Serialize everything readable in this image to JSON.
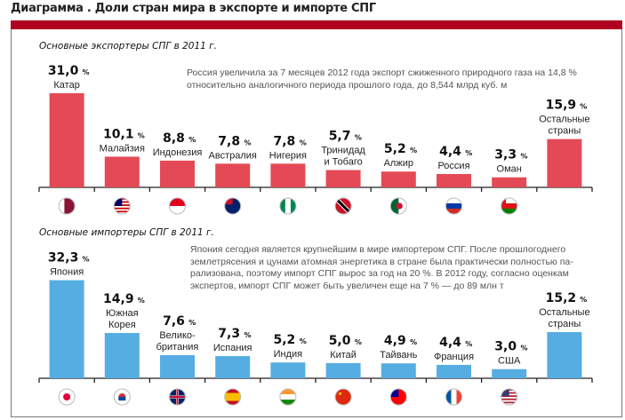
{
  "header": {
    "title": "Диаграмма . Доли стран мира в экспорте и импорте СПГ"
  },
  "colors": {
    "band": "#b00020",
    "export_bar": "#e44a55",
    "import_bar": "#56ade2",
    "axis": "#222222"
  },
  "exporters": {
    "subtitle": "Основные экспортеры СПГ в 2011 г.",
    "note_lines": [
      "Россия увеличила за 7 месяцев 2012 года экспорт сжиженного природного газа на 14,8 %",
      "относительно аналогичного периода прошлого года, до 8,544 млрд куб. м"
    ]
  },
  "importers": {
    "subtitle": "Основные импортеры СПГ в 2011 г.",
    "note_lines": [
      "Япония сегодня является крупнейшим в мире импортером СПГ. После прошлогоднего",
      "землетрясения и цунами атомная энергетика в стране была практически полностью па-",
      "рализована, поэтому импорт СПГ вырос за год на 20 %. В 2012 году, согласно оценкам",
      "экспертов, импорт СПГ может быть увеличен еще на 7 %  — до 89 млн т"
    ]
  },
  "chart_data": [
    {
      "type": "bar",
      "title": "Основные экспортеры СПГ в 2011 г.",
      "xlabel": "",
      "ylabel": "",
      "unit": "%",
      "categories": [
        "Катар",
        "Малайзия",
        "Индонезия",
        "Австралия",
        "Нигерия",
        "Тринидад и Тобаго",
        "Алжир",
        "Россия",
        "Оман",
        "Остальные страны"
      ],
      "label_lines": [
        [
          "Катар"
        ],
        [
          "Малайзия"
        ],
        [
          "Индонезия"
        ],
        [
          "Австралия"
        ],
        [
          "Нигерия"
        ],
        [
          "Тринидад",
          "и Тобаго"
        ],
        [
          "Алжир"
        ],
        [
          "Россия"
        ],
        [
          "Оман"
        ],
        [
          "Остальные",
          "страны"
        ]
      ],
      "value_labels": [
        "31,0",
        "10,1",
        "8,8",
        "7,8",
        "7,8",
        "5,7",
        "5,2",
        "4,4",
        "3,3",
        "15,9"
      ],
      "values": [
        31.0,
        10.1,
        8.8,
        7.8,
        7.8,
        5.7,
        5.2,
        4.4,
        3.3,
        15.9
      ],
      "flags": [
        "qatar-flag",
        "malaysia-flag",
        "indonesia-flag",
        "australia-flag",
        "nigeria-flag",
        "trinidad-tobago-flag",
        "algeria-flag",
        "russia-flag",
        "oman-flag",
        null
      ],
      "grid": false,
      "legend": "none"
    },
    {
      "type": "bar",
      "title": "Основные импортеры СПГ в 2011 г.",
      "xlabel": "",
      "ylabel": "",
      "unit": "%",
      "categories": [
        "Япония",
        "Южная Корея",
        "Великобритания",
        "Испания",
        "Индия",
        "Китай",
        "Тайвань",
        "Франция",
        "США",
        "Остальные страны"
      ],
      "label_lines": [
        [
          "Япония"
        ],
        [
          "Южная",
          "Корея"
        ],
        [
          "Велико-",
          "британия"
        ],
        [
          "Испания"
        ],
        [
          "Индия"
        ],
        [
          "Китай"
        ],
        [
          "Тайвань"
        ],
        [
          "Франция"
        ],
        [
          "США"
        ],
        [
          "Остальные",
          "страны"
        ]
      ],
      "value_labels": [
        "32,3",
        "14,9",
        "7,6",
        "7,3",
        "5,2",
        "5,0",
        "4,9",
        "4,4",
        "3,0",
        "15,2"
      ],
      "values": [
        32.3,
        14.9,
        7.6,
        7.3,
        5.2,
        5.0,
        4.9,
        4.4,
        3.0,
        15.2
      ],
      "flags": [
        "japan-flag",
        "south-korea-flag",
        "uk-flag",
        "spain-flag",
        "india-flag",
        "china-flag",
        "taiwan-flag",
        "france-flag",
        "usa-flag",
        null
      ],
      "grid": false,
      "legend": "none"
    }
  ]
}
